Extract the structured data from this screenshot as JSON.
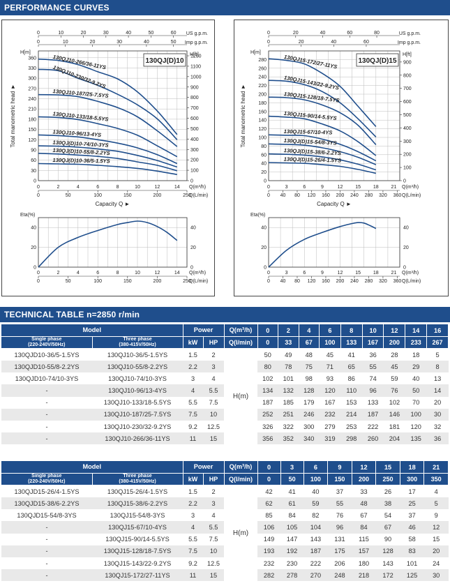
{
  "headers": {
    "performance": "PERFORMANCE CURVES",
    "technical": "TECHNICAL TABLE n=2850 r/min"
  },
  "colors": {
    "bar": "#1f4e8c",
    "curve": "#1f4e8c"
  },
  "chart_data": [
    {
      "id": "qj10-head",
      "type": "line",
      "title": "130QJ(D)10",
      "ylabel": "Total manometric head",
      "xlabel": "Capacity Q",
      "h_unit": "H[m]",
      "ft_unit": "H[ft]",
      "usgpm_label": "US g.p.m.",
      "imp_label": "Imp g.p.m.",
      "q_m3h_label": "Q(m³/h)",
      "q_lmin_label": "Q(L/min)",
      "x_m3h_ticks": [
        "0",
        "2",
        "4",
        "6",
        "8",
        "10",
        "12",
        "14"
      ],
      "x_lmin_ticks": [
        "0",
        "50",
        "100",
        "150",
        "200",
        "250"
      ],
      "usgpm_ticks": [
        "0",
        "10",
        "20",
        "30",
        "40",
        "50",
        "60"
      ],
      "imp_ticks": [
        "0",
        "10",
        "20",
        "30",
        "40",
        "50"
      ],
      "y_ticks": [
        "0",
        "30",
        "60",
        "90",
        "120",
        "150",
        "180",
        "210",
        "240",
        "270",
        "300",
        "330",
        "360"
      ],
      "ft_ticks": [
        "0",
        "100",
        "200",
        "300",
        "400",
        "500",
        "600",
        "700",
        "800",
        "900",
        "1000",
        "1100",
        "1200"
      ],
      "xlim": [
        0,
        15
      ],
      "ylim": [
        0,
        380
      ],
      "x": [
        0,
        2,
        4,
        6,
        8,
        10,
        12,
        14
      ],
      "series": [
        {
          "name": "130QJ10-266/36-11YS",
          "values": [
            356,
            352,
            340,
            319,
            298,
            260,
            204,
            135
          ]
        },
        {
          "name": "130QJ10-230/32-9.2YS",
          "values": [
            326,
            322,
            300,
            279,
            253,
            222,
            181,
            120
          ]
        },
        {
          "name": "130QJ10-187/25-7.5YS",
          "values": [
            252,
            251,
            246,
            232,
            214,
            187,
            146,
            100
          ]
        },
        {
          "name": "130QJ10-133/18-5.5YS",
          "values": [
            187,
            185,
            179,
            167,
            153,
            133,
            102,
            70
          ]
        },
        {
          "name": "130QJ10-96/13-4YS",
          "values": [
            134,
            132,
            128,
            120,
            110,
            96,
            76,
            50
          ]
        },
        {
          "name": "130QJ(D)10-74/10-3YS",
          "values": [
            102,
            101,
            98,
            93,
            86,
            74,
            59,
            40
          ]
        },
        {
          "name": "130QJ(D)10-55/8-2.2YS",
          "values": [
            80,
            78,
            75,
            71,
            65,
            55,
            45,
            29
          ]
        },
        {
          "name": "130QJ(D)10-36/5-1.5YS",
          "values": [
            50,
            49,
            48,
            45,
            41,
            36,
            28,
            18
          ]
        }
      ]
    },
    {
      "id": "qj10-eta",
      "type": "line",
      "ylabel": "Eta(%)",
      "q_m3h_label": "Q(m³/h)",
      "q_lmin_label": "Q(L/min)",
      "x_m3h_ticks": [
        "0",
        "2",
        "4",
        "6",
        "8",
        "10",
        "12",
        "14"
      ],
      "x_lmin_ticks": [
        "0",
        "50",
        "100",
        "150",
        "200",
        "250"
      ],
      "y_ticks": [
        "0",
        "20",
        "40"
      ],
      "xlim": [
        0,
        15
      ],
      "ylim": [
        0,
        50
      ],
      "x": [
        0,
        2,
        4,
        6,
        8,
        9,
        10,
        11,
        12,
        13,
        14
      ],
      "values": [
        0,
        20,
        30,
        37,
        43,
        45,
        46.5,
        45,
        41,
        35,
        27
      ]
    },
    {
      "id": "qj15-head",
      "type": "line",
      "title": "130QJ(D)15",
      "ylabel": "Total manometric head",
      "xlabel": "Capacity Q",
      "h_unit": "H[m]",
      "ft_unit": "H[ft]",
      "usgpm_label": "US g.p.m.",
      "imp_label": "Imp g.p.m.",
      "q_m3h_label": "Q(m³/h)",
      "q_lmin_label": "Q(L/min)",
      "x_m3h_ticks": [
        "0",
        "3",
        "6",
        "9",
        "12",
        "15",
        "18",
        "21"
      ],
      "x_lmin_ticks": [
        "0",
        "40",
        "80",
        "120",
        "160",
        "200",
        "240",
        "280",
        "320",
        "360"
      ],
      "usgpm_ticks": [
        "0",
        "20",
        "40",
        "60",
        "80"
      ],
      "imp_ticks": [
        "0",
        "20",
        "40",
        "60"
      ],
      "y_ticks": [
        "0",
        "20",
        "40",
        "60",
        "80",
        "100",
        "120",
        "140",
        "160",
        "180",
        "200",
        "220",
        "240",
        "260",
        "280"
      ],
      "ft_ticks": [
        "0",
        "100",
        "200",
        "300",
        "400",
        "500",
        "600",
        "700",
        "800",
        "900"
      ],
      "xlim": [
        0,
        22
      ],
      "ylim": [
        0,
        300
      ],
      "x": [
        0,
        3,
        6,
        9,
        12,
        15,
        18
      ],
      "series": [
        {
          "name": "130QJ15-172/27-11YS",
          "values": [
            282,
            278,
            270,
            248,
            218,
            172,
            125
          ]
        },
        {
          "name": "130QJ15-143/22-9.2YS",
          "values": [
            232,
            230,
            222,
            206,
            180,
            143,
            101
          ]
        },
        {
          "name": "130QJ15-128/18-7.5YS",
          "values": [
            193,
            192,
            187,
            175,
            157,
            128,
            83
          ]
        },
        {
          "name": "130QJ15-90/14-5.5YS",
          "values": [
            149,
            147,
            143,
            131,
            115,
            90,
            58
          ]
        },
        {
          "name": "130QJ15-67/10-4YS",
          "values": [
            106,
            105,
            104,
            96,
            84,
            67,
            46
          ]
        },
        {
          "name": "130QJ(D)15-54/8-3YS",
          "values": [
            85,
            84,
            82,
            76,
            67,
            54,
            37
          ]
        },
        {
          "name": "130QJ(D)15-38/6-2.2YS",
          "values": [
            62,
            61,
            59,
            55,
            48,
            38,
            25
          ]
        },
        {
          "name": "130QJ(D)15-26/4-1.5YS",
          "values": [
            42,
            41,
            40,
            37,
            33,
            26,
            17
          ]
        }
      ]
    },
    {
      "id": "qj15-eta",
      "type": "line",
      "ylabel": "Eta(%)",
      "q_m3h_label": "Q(m³/h)",
      "q_lmin_label": "Q(L/min)",
      "x_m3h_ticks": [
        "0",
        "3",
        "6",
        "9",
        "12",
        "15",
        "18",
        "21"
      ],
      "x_lmin_ticks": [
        "0",
        "40",
        "80",
        "120",
        "160",
        "200",
        "240",
        "280",
        "320",
        "360"
      ],
      "y_ticks": [
        "0",
        "20",
        "40"
      ],
      "xlim": [
        0,
        22
      ],
      "ylim": [
        0,
        50
      ],
      "x": [
        0,
        3,
        6,
        9,
        12,
        14,
        15,
        16,
        17,
        18
      ],
      "values": [
        0,
        17,
        28,
        35,
        41,
        44,
        45,
        44.5,
        42,
        39
      ]
    }
  ],
  "table_head": {
    "model": "Model",
    "power": "Power",
    "q_m3h": "Q(m³/h)",
    "q_lmin": "Q(l/min)",
    "single": "Single phase",
    "single_sub": "(220-240V/50Hz)",
    "three": "Three phase",
    "three_sub": "(380-415V/50Hz)",
    "kw": "kW",
    "hp": "HP",
    "h": "H(m)"
  },
  "table1": {
    "q_m3h": [
      "0",
      "2",
      "4",
      "6",
      "8",
      "10",
      "12",
      "14",
      "16"
    ],
    "q_lmin": [
      "0",
      "33",
      "67",
      "100",
      "133",
      "167",
      "200",
      "233",
      "267"
    ],
    "rows": [
      {
        "single": "130QJD10-36/5-1.5YS",
        "three": "130QJ10-36/5-1.5YS",
        "kw": "1.5",
        "hp": "2",
        "h": [
          "50",
          "49",
          "48",
          "45",
          "41",
          "36",
          "28",
          "18",
          "5"
        ]
      },
      {
        "single": "130QJD10-55/8-2.2YS",
        "three": "130QJ10-55/8-2.2YS",
        "kw": "2.2",
        "hp": "3",
        "h": [
          "80",
          "78",
          "75",
          "71",
          "65",
          "55",
          "45",
          "29",
          "8"
        ]
      },
      {
        "single": "130QJD10-74/10-3YS",
        "three": "130QJ10-74/10-3YS",
        "kw": "3",
        "hp": "4",
        "h": [
          "102",
          "101",
          "98",
          "93",
          "86",
          "74",
          "59",
          "40",
          "13"
        ]
      },
      {
        "single": "-",
        "three": "130QJ10-96/13-4YS",
        "kw": "4",
        "hp": "5.5",
        "h": [
          "134",
          "132",
          "128",
          "120",
          "110",
          "96",
          "76",
          "50",
          "14"
        ]
      },
      {
        "single": "-",
        "three": "130QJ10-133/18-5.5YS",
        "kw": "5.5",
        "hp": "7.5",
        "h": [
          "187",
          "185",
          "179",
          "167",
          "153",
          "133",
          "102",
          "70",
          "20"
        ]
      },
      {
        "single": "-",
        "three": "130QJ10-187/25-7.5YS",
        "kw": "7.5",
        "hp": "10",
        "h": [
          "252",
          "251",
          "246",
          "232",
          "214",
          "187",
          "146",
          "100",
          "30"
        ]
      },
      {
        "single": "-",
        "three": "130QJ10-230/32-9.2YS",
        "kw": "9.2",
        "hp": "12.5",
        "h": [
          "326",
          "322",
          "300",
          "279",
          "253",
          "222",
          "181",
          "120",
          "32"
        ]
      },
      {
        "single": "-",
        "three": "130QJ10-266/36-11YS",
        "kw": "11",
        "hp": "15",
        "h": [
          "356",
          "352",
          "340",
          "319",
          "298",
          "260",
          "204",
          "135",
          "36"
        ]
      }
    ]
  },
  "table2": {
    "q_m3h": [
      "0",
      "3",
      "6",
      "9",
      "12",
      "15",
      "18",
      "21"
    ],
    "q_lmin": [
      "0",
      "50",
      "100",
      "150",
      "200",
      "250",
      "300",
      "350"
    ],
    "rows": [
      {
        "single": "130QJD15-26/4-1.5YS",
        "three": "130QJ15-26/4-1.5YS",
        "kw": "1.5",
        "hp": "2",
        "h": [
          "42",
          "41",
          "40",
          "37",
          "33",
          "26",
          "17",
          "4"
        ]
      },
      {
        "single": "130QJD15-38/6-2.2YS",
        "three": "130QJ15-38/6-2.2YS",
        "kw": "2.2",
        "hp": "3",
        "h": [
          "62",
          "61",
          "59",
          "55",
          "48",
          "38",
          "25",
          "5"
        ]
      },
      {
        "single": "130QJD15-54/8-3YS",
        "three": "130QJ15-54/8-3YS",
        "kw": "3",
        "hp": "4",
        "h": [
          "85",
          "84",
          "82",
          "76",
          "67",
          "54",
          "37",
          "9"
        ]
      },
      {
        "single": "-",
        "three": "130QJ15-67/10-4YS",
        "kw": "4",
        "hp": "5.5",
        "h": [
          "106",
          "105",
          "104",
          "96",
          "84",
          "67",
          "46",
          "12"
        ]
      },
      {
        "single": "-",
        "three": "130QJ15-90/14-5.5YS",
        "kw": "5.5",
        "hp": "7.5",
        "h": [
          "149",
          "147",
          "143",
          "131",
          "115",
          "90",
          "58",
          "15"
        ]
      },
      {
        "single": "-",
        "three": "130QJ15-128/18-7.5YS",
        "kw": "7.5",
        "hp": "10",
        "h": [
          "193",
          "192",
          "187",
          "175",
          "157",
          "128",
          "83",
          "20"
        ]
      },
      {
        "single": "-",
        "three": "130QJ15-143/22-9.2YS",
        "kw": "9.2",
        "hp": "12.5",
        "h": [
          "232",
          "230",
          "222",
          "206",
          "180",
          "143",
          "101",
          "24"
        ]
      },
      {
        "single": "-",
        "three": "130QJ15-172/27-11YS",
        "kw": "11",
        "hp": "15",
        "h": [
          "282",
          "278",
          "270",
          "248",
          "218",
          "172",
          "125",
          "30"
        ]
      }
    ]
  }
}
